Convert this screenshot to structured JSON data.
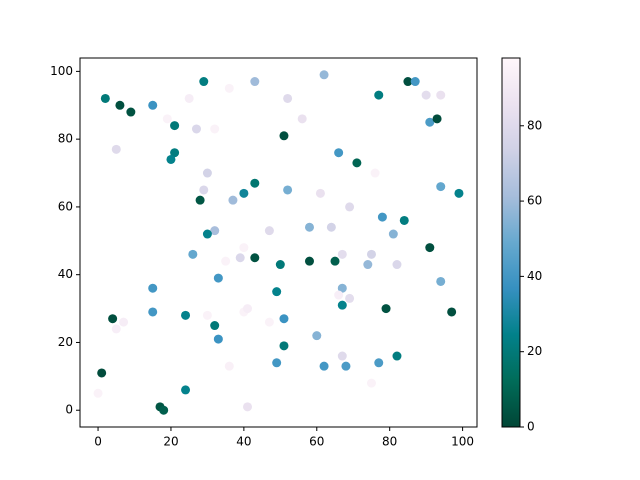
{
  "chart_data": {
    "type": "scatter",
    "x": [
      1,
      0,
      2,
      6,
      9,
      15,
      19,
      21,
      29,
      36,
      43,
      62,
      85,
      87,
      25,
      52,
      90,
      94,
      77,
      5,
      21,
      20,
      27,
      32,
      51,
      56,
      91,
      93,
      66,
      71,
      76,
      30,
      43,
      29,
      52,
      40,
      61,
      94,
      99,
      28,
      37,
      69,
      32,
      30,
      78,
      84,
      47,
      58,
      64,
      81,
      40,
      26,
      39,
      35,
      43,
      50,
      58,
      65,
      67,
      75,
      74,
      82,
      91,
      33,
      15,
      67,
      66,
      69,
      49,
      94,
      67,
      79,
      40,
      41,
      15,
      97,
      4,
      7,
      5,
      24,
      30,
      51,
      32,
      47,
      33,
      60,
      51,
      67,
      82,
      49,
      77,
      62,
      68,
      36,
      75,
      24,
      17,
      18,
      41
    ],
    "y": [
      11,
      5,
      92,
      90,
      88,
      90,
      86,
      84,
      97,
      95,
      97,
      99,
      97,
      97,
      92,
      92,
      93,
      93,
      93,
      77,
      76,
      74,
      83,
      83,
      81,
      86,
      85,
      86,
      76,
      73,
      70,
      70,
      67,
      65,
      65,
      64,
      64,
      66,
      64,
      62,
      62,
      60,
      53,
      52,
      57,
      56,
      53,
      54,
      54,
      52,
      48,
      46,
      45,
      44,
      45,
      43,
      44,
      44,
      46,
      46,
      43,
      43,
      48,
      39,
      36,
      36,
      34,
      33,
      35,
      38,
      31,
      30,
      29,
      30,
      29,
      29,
      27,
      26,
      24,
      28,
      28,
      27,
      25,
      26,
      21,
      22,
      19,
      16,
      16,
      14,
      14,
      13,
      13,
      13,
      8,
      6,
      1,
      0,
      1
    ],
    "c": [
      2,
      95,
      20,
      3,
      4,
      38,
      95,
      20,
      22,
      95,
      60,
      58,
      3,
      40,
      92,
      80,
      82,
      85,
      22,
      80,
      22,
      25,
      78,
      95,
      3,
      85,
      42,
      2,
      40,
      10,
      95,
      75,
      18,
      78,
      52,
      28,
      85,
      48,
      25,
      5,
      60,
      80,
      62,
      25,
      40,
      22,
      80,
      55,
      75,
      55,
      95,
      48,
      78,
      95,
      4,
      20,
      3,
      8,
      82,
      75,
      58,
      78,
      3,
      40,
      40,
      55,
      93,
      82,
      25,
      52,
      25,
      4,
      95,
      92,
      40,
      3,
      3,
      92,
      93,
      25,
      95,
      38,
      20,
      95,
      38,
      55,
      20,
      80,
      22,
      40,
      42,
      40,
      42,
      94,
      95,
      25,
      5,
      8,
      85
    ],
    "colormap": [
      "#014636",
      "#016c59",
      "#02818a",
      "#3690c0",
      "#67a9cf",
      "#a6bddb",
      "#d0d1e6",
      "#ece2f0",
      "#fff7fb"
    ],
    "clim": [
      0,
      98
    ],
    "cticks": [
      0,
      20,
      40,
      60,
      80
    ],
    "xlim": [
      -4.95,
      103.95
    ],
    "ylim": [
      -4.95,
      103.95
    ],
    "xticks": [
      0,
      20,
      40,
      60,
      80,
      100
    ],
    "yticks": [
      0,
      20,
      40,
      60,
      80,
      100
    ]
  }
}
